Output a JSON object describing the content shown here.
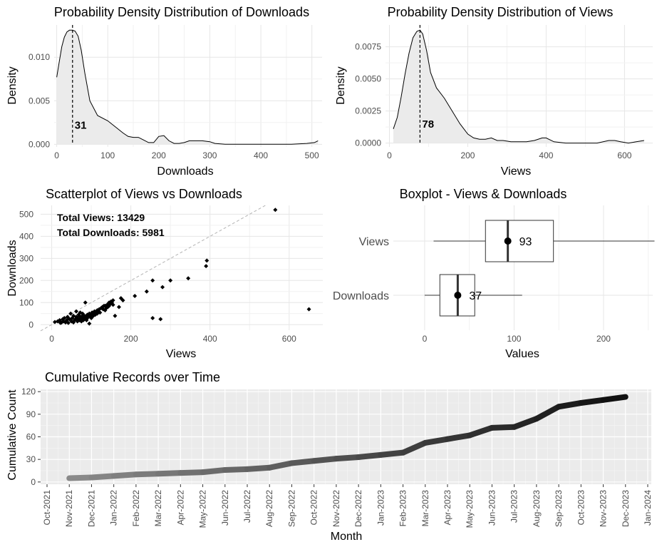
{
  "chart_data": [
    {
      "type": "area",
      "title": "Probability Density Distribution of Downloads",
      "xlabel": "Downloads",
      "ylabel": "Density",
      "xlim": [
        -5,
        520
      ],
      "ylim": [
        -0.0003,
        0.0137
      ],
      "x_ticks": [
        0,
        100,
        200,
        300,
        400,
        500
      ],
      "x_tick_labels": [
        "0",
        "100",
        "200",
        "300",
        "400",
        "500"
      ],
      "y_ticks": [
        0,
        0.005,
        0.01
      ],
      "y_tick_labels": [
        "0.000",
        "0.005",
        "0.010"
      ],
      "x": [
        0,
        5,
        10,
        15,
        20,
        25,
        31,
        36,
        42,
        48,
        55,
        65,
        80,
        100,
        115,
        130,
        140,
        150,
        160,
        170,
        180,
        190,
        200,
        210,
        220,
        230,
        240,
        250,
        260,
        270,
        285,
        300,
        310,
        330,
        350,
        380,
        400,
        430,
        460,
        490,
        505,
        512
      ],
      "y": [
        0.0077,
        0.0095,
        0.0112,
        0.0123,
        0.0129,
        0.0131,
        0.0131,
        0.013,
        0.0124,
        0.0108,
        0.0082,
        0.005,
        0.0033,
        0.0027,
        0.002,
        0.0013,
        0.0009,
        0.0008,
        0.0008,
        0.0005,
        0.0002,
        0.0002,
        0.0009,
        0.001,
        0.0004,
        0.0001,
        0.0001,
        0.0002,
        0.0004,
        0.0004,
        0.0004,
        0.0003,
        0.0001,
        0.0,
        0.0,
        0.0,
        0.0,
        0.0,
        0.0,
        0.0001,
        0.0002,
        0.0004
      ],
      "annotation": {
        "x": 31,
        "label": "31"
      },
      "grid": true
    },
    {
      "type": "area",
      "title": "Probability Density Distribution of Views",
      "xlabel": "Views",
      "ylabel": "Density",
      "xlim": [
        -10,
        672
      ],
      "ylim": [
        -0.0003,
        0.0092
      ],
      "x_ticks": [
        0,
        200,
        400,
        600
      ],
      "x_tick_labels": [
        "0",
        "200",
        "400",
        "600"
      ],
      "y_ticks": [
        0,
        0.0025,
        0.005,
        0.0075
      ],
      "y_tick_labels": [
        "0.0000",
        "0.0025",
        "0.0050",
        "0.0075"
      ],
      "x": [
        10,
        20,
        30,
        40,
        50,
        60,
        70,
        78,
        85,
        95,
        105,
        120,
        140,
        160,
        180,
        200,
        215,
        230,
        245,
        260,
        275,
        290,
        310,
        330,
        350,
        370,
        390,
        400,
        420,
        450,
        480,
        500,
        530,
        560,
        575,
        590,
        610,
        630,
        650
      ],
      "y": [
        0.0011,
        0.002,
        0.0036,
        0.0054,
        0.007,
        0.0082,
        0.0087,
        0.0088,
        0.0085,
        0.0072,
        0.0055,
        0.0043,
        0.0035,
        0.0025,
        0.0015,
        0.0007,
        0.0004,
        0.0003,
        0.0003,
        0.0004,
        0.0002,
        0.0002,
        0.0001,
        0.0001,
        0.0001,
        0.0002,
        0.0004,
        0.0004,
        0.0001,
        0.0,
        0.0,
        0.0,
        0.0,
        0.0002,
        0.0002,
        0.0001,
        0.0,
        0.0001,
        0.0002
      ],
      "annotation": {
        "x": 78,
        "label": "78"
      },
      "grid": true
    },
    {
      "type": "scatter",
      "title": "Scatterplot of Views vs Downloads",
      "xlabel": "Views",
      "ylabel": "Downloads",
      "xlim": [
        -28,
        685
      ],
      "ylim": [
        -25,
        540
      ],
      "x_ticks": [
        0,
        200,
        400,
        600
      ],
      "x_tick_labels": [
        "0",
        "200",
        "400",
        "600"
      ],
      "y_ticks": [
        0,
        100,
        200,
        300,
        400,
        500
      ],
      "y_tick_labels": [
        "0",
        "100",
        "200",
        "300",
        "400",
        "500"
      ],
      "reference_line": [
        [
          -28,
          -28
        ],
        [
          540,
          540
        ]
      ],
      "annotations": [
        "Total Views: 13429",
        "Total Downloads: 5981"
      ],
      "x": [
        8,
        15,
        20,
        22,
        25,
        28,
        30,
        32,
        35,
        38,
        40,
        42,
        45,
        48,
        50,
        52,
        55,
        55,
        58,
        60,
        62,
        62,
        65,
        65,
        68,
        70,
        70,
        72,
        72,
        75,
        75,
        78,
        78,
        80,
        80,
        82,
        82,
        85,
        85,
        88,
        90,
        90,
        92,
        95,
        95,
        98,
        100,
        100,
        102,
        105,
        105,
        108,
        110,
        112,
        115,
        115,
        118,
        120,
        122,
        125,
        128,
        130,
        132,
        135,
        135,
        138,
        140,
        142,
        145,
        145,
        148,
        150,
        152,
        155,
        155,
        160,
        170,
        175,
        180,
        210,
        240,
        255,
        255,
        275,
        280,
        300,
        345,
        390,
        392,
        565,
        650
      ],
      "y": [
        12,
        15,
        20,
        8,
        10,
        25,
        15,
        30,
        10,
        20,
        35,
        8,
        25,
        50,
        15,
        30,
        40,
        10,
        20,
        25,
        35,
        60,
        15,
        30,
        45,
        20,
        40,
        25,
        55,
        15,
        35,
        30,
        50,
        20,
        45,
        25,
        40,
        35,
        100,
        20,
        30,
        45,
        40,
        5,
        50,
        35,
        45,
        30,
        55,
        40,
        50,
        60,
        45,
        55,
        50,
        65,
        60,
        70,
        55,
        75,
        80,
        70,
        85,
        65,
        85,
        75,
        90,
        80,
        85,
        100,
        95,
        105,
        100,
        110,
        90,
        40,
        80,
        120,
        110,
        130,
        150,
        30,
        200,
        25,
        170,
        200,
        210,
        265,
        290,
        520,
        70
      ],
      "grid": true
    },
    {
      "type": "boxplot",
      "title": "Boxplot - Views & Downloads",
      "xlabel": "Values",
      "xlim": [
        -35,
        255
      ],
      "x_ticks": [
        0,
        100,
        200
      ],
      "x_tick_labels": [
        "0",
        "100",
        "200"
      ],
      "categories": [
        "Views",
        "Downloads"
      ],
      "boxes": [
        {
          "name": "Views",
          "whisker_low": 10,
          "q1": 68,
          "median": 93,
          "q3": 144,
          "whisker_high": 257,
          "mean": 93,
          "label": "93"
        },
        {
          "name": "Downloads",
          "whisker_low": 0,
          "q1": 17,
          "median": 37,
          "q3": 56,
          "whisker_high": 109,
          "mean": 37,
          "label": "37"
        }
      ],
      "grid": true
    },
    {
      "type": "line",
      "title": "Cumulative Records over Time",
      "xlabel": "Month",
      "ylabel": "Cumulative Count",
      "ylim": [
        -3,
        123
      ],
      "y_ticks": [
        0,
        30,
        60,
        90,
        120
      ],
      "y_tick_labels": [
        "0",
        "30",
        "60",
        "90",
        "120"
      ],
      "x_tick_labels": [
        "Oct-2021",
        "Nov-2021",
        "Dec-2021",
        "Jan-2022",
        "Feb-2022",
        "Mar-2022",
        "Apr-2022",
        "May-2022",
        "Jun-2022",
        "Jul-2022",
        "Aug-2022",
        "Sep-2022",
        "Oct-2022",
        "Nov-2022",
        "Dec-2022",
        "Jan-2023",
        "Feb-2023",
        "Mar-2023",
        "Apr-2023",
        "May-2023",
        "Jun-2023",
        "Jul-2023",
        "Aug-2023",
        "Sep-2023",
        "Oct-2023",
        "Nov-2023",
        "Dec-2023",
        "Jan-2024"
      ],
      "x": [
        "Nov-2021",
        "Dec-2021",
        "Jan-2022",
        "Feb-2022",
        "Mar-2022",
        "Apr-2022",
        "May-2022",
        "Jun-2022",
        "Jul-2022",
        "Aug-2022",
        "Sep-2022",
        "Oct-2022",
        "Nov-2022",
        "Dec-2022",
        "Jan-2023",
        "Feb-2023",
        "Mar-2023",
        "Apr-2023",
        "May-2023",
        "Jun-2023",
        "Jul-2023",
        "Aug-2023",
        "Sep-2023",
        "Oct-2023",
        "Nov-2023",
        "Dec-2023"
      ],
      "y": [
        5,
        6,
        8,
        10,
        11,
        12,
        13,
        16,
        17,
        19,
        25,
        28,
        31,
        33,
        36,
        39,
        52,
        57,
        62,
        72,
        73,
        84,
        100,
        105,
        109,
        113
      ],
      "color_gradient": [
        "#8a8a8a",
        "#111111"
      ],
      "grid": true
    }
  ]
}
